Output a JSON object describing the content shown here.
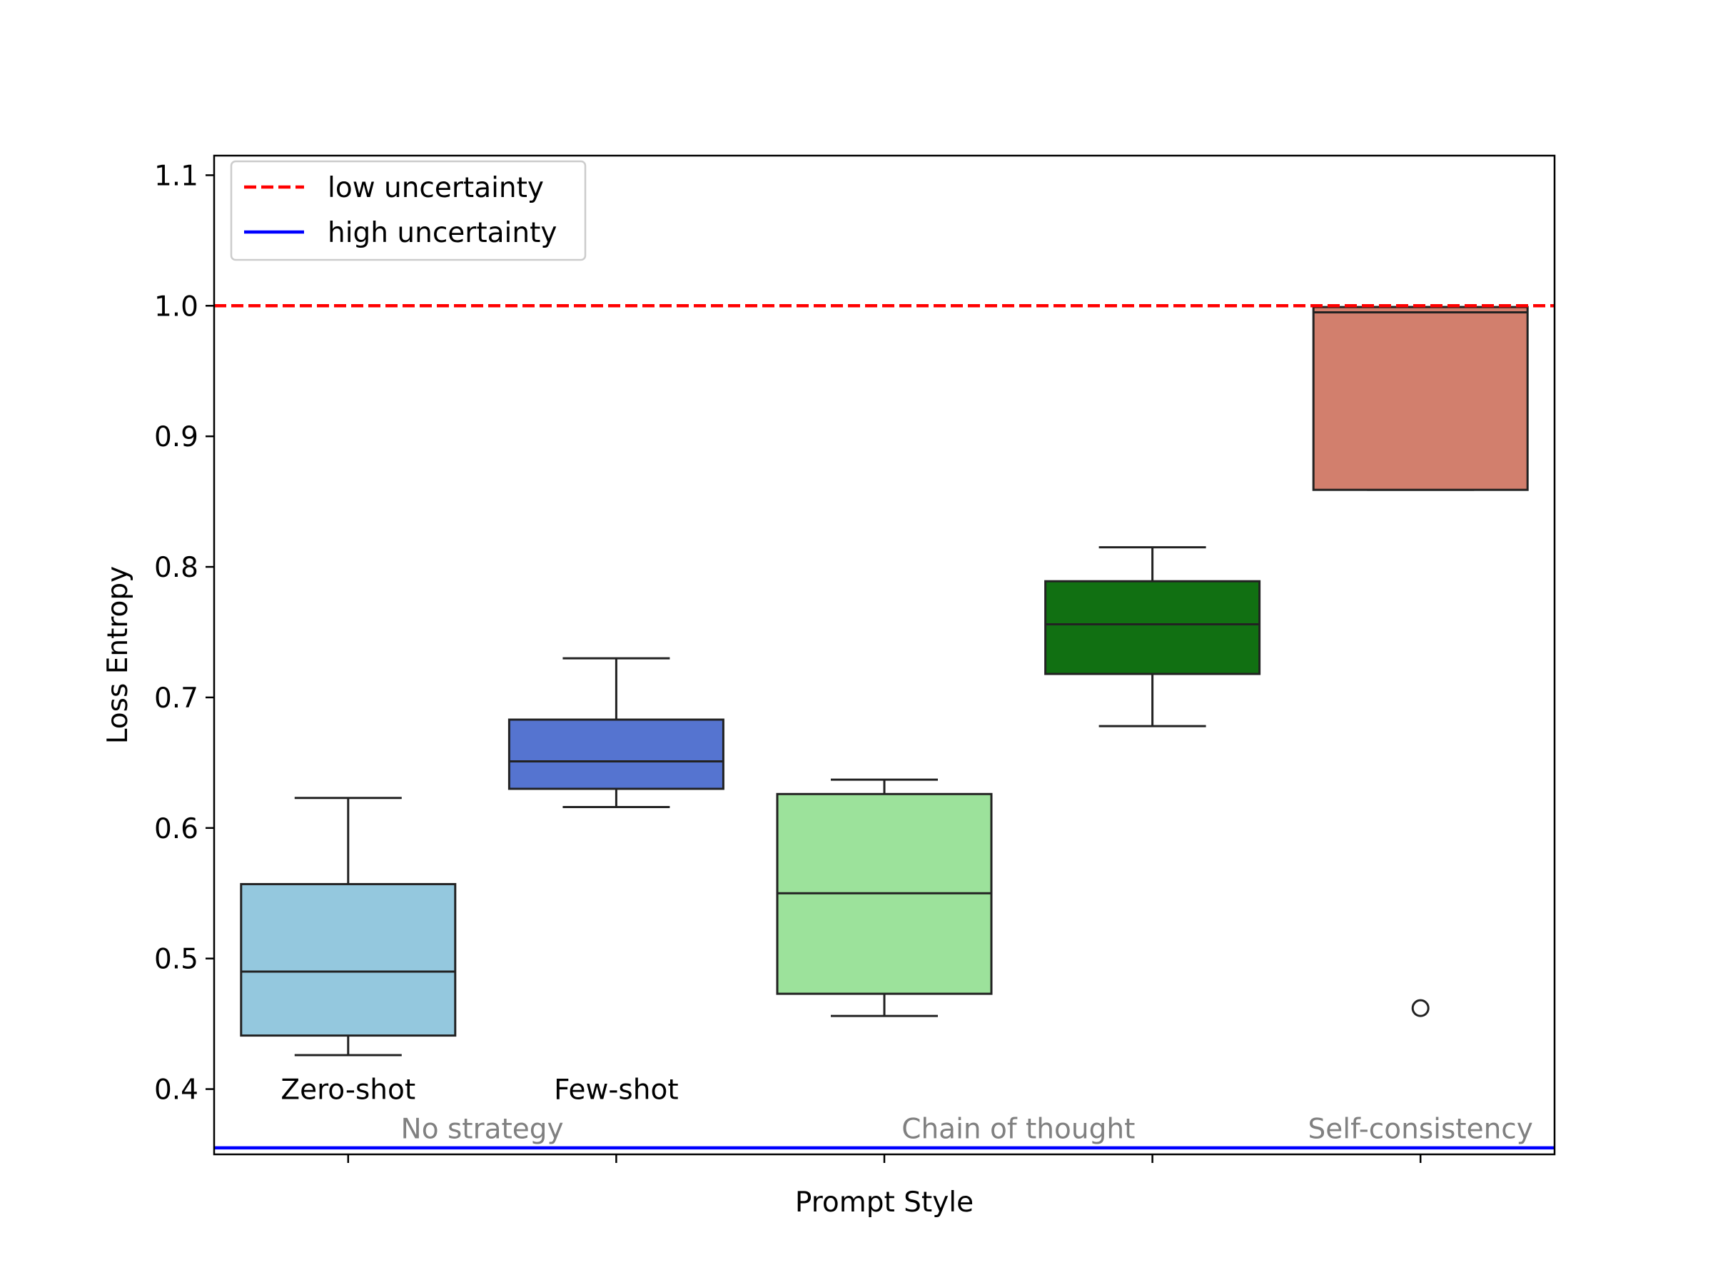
{
  "chart_data": {
    "type": "box",
    "title": "",
    "xlabel": "Prompt Style",
    "ylabel": "Loss Entropy",
    "ylim": [
      0.35,
      1.115
    ],
    "yticks": [
      "0.4",
      "0.5",
      "0.6",
      "0.7",
      "0.8",
      "0.9",
      "1.0",
      "1.1"
    ],
    "ytick_values": [
      0.4,
      0.5,
      0.6,
      0.7,
      0.8,
      0.9,
      1.0,
      1.1
    ],
    "grid": false,
    "legend": {
      "placement": "upper-left",
      "entries": [
        {
          "label": "low uncertainty",
          "color": "#ff0000",
          "style": "dashed"
        },
        {
          "label": "high uncertainty",
          "color": "#0000ff",
          "style": "solid"
        }
      ]
    },
    "reference_lines": [
      {
        "name": "low uncertainty",
        "y": 1.0,
        "color": "#ff0000",
        "style": "dashed"
      },
      {
        "name": "high uncertainty",
        "y": 0.355,
        "color": "#0000ff",
        "style": "solid"
      }
    ],
    "boxes": [
      {
        "color": "#94c8de",
        "whisker_low": 0.426,
        "q1": 0.441,
        "median": 0.49,
        "q3": 0.557,
        "whisker_high": 0.623,
        "outliers": []
      },
      {
        "color": "#5574d0",
        "whisker_low": 0.616,
        "q1": 0.63,
        "median": 0.651,
        "q3": 0.683,
        "whisker_high": 0.73,
        "outliers": []
      },
      {
        "color": "#9ce29b",
        "whisker_low": 0.456,
        "q1": 0.473,
        "median": 0.55,
        "q3": 0.626,
        "whisker_high": 0.637,
        "outliers": []
      },
      {
        "color": "#117012",
        "whisker_low": 0.678,
        "q1": 0.718,
        "median": 0.756,
        "q3": 0.789,
        "whisker_high": 0.815,
        "outliers": []
      },
      {
        "color": "#d27f6d",
        "whisker_low": 0.859,
        "q1": 0.859,
        "median": 0.995,
        "q3": 0.999,
        "whisker_high": 0.999,
        "outliers": [
          0.462
        ]
      }
    ],
    "annotations": [
      {
        "text": "Zero-shot",
        "x": 0,
        "y": 0.4,
        "color": "#000000"
      },
      {
        "text": "Few-shot",
        "x": 1,
        "y": 0.4,
        "color": "#000000"
      },
      {
        "text": "No strategy",
        "x": 0.5,
        "y": 0.37,
        "color": "#808080"
      },
      {
        "text": "Chain of thought",
        "x": 2.5,
        "y": 0.37,
        "color": "#808080"
      },
      {
        "text": "Self-consistency",
        "x": 4,
        "y": 0.37,
        "color": "#808080"
      }
    ]
  }
}
